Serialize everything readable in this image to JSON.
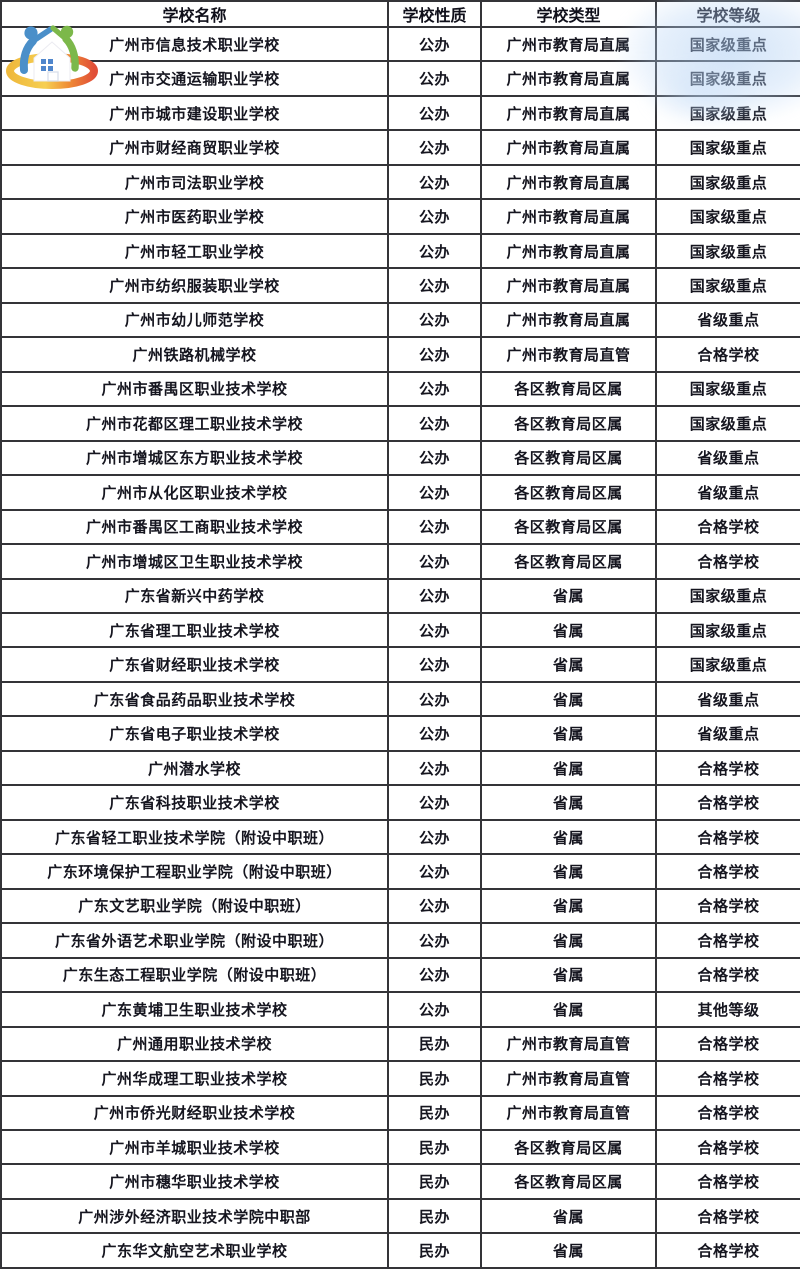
{
  "page": {
    "title": "广州中职学校一览表"
  },
  "colors": {
    "border": "#343438",
    "text": "#15151f",
    "background": "#ffffff",
    "watermark_blue": "#b7d4f5",
    "logo_blue": "#4a8fc9",
    "logo_green": "#7cb84a",
    "logo_ring_yellow": "#efb93c",
    "logo_ring_orange": "#ef8c35",
    "logo_ring_red": "#e14f38",
    "logo_window_blue": "#4f86cc"
  },
  "logo": {
    "icon": "family-house-swirl-logo"
  },
  "table": {
    "columns": [
      "学校名称",
      "学校性质",
      "学校类型",
      "学校等级"
    ],
    "rows": [
      {
        "name": "广州市信息技术职业学校",
        "nature": "公办",
        "type": "广州市教育局直属",
        "level": "国家级重点"
      },
      {
        "name": "广州市交通运输职业学校",
        "nature": "公办",
        "type": "广州市教育局直属",
        "level": "国家级重点"
      },
      {
        "name": "广州市城市建设职业学校",
        "nature": "公办",
        "type": "广州市教育局直属",
        "level": "国家级重点"
      },
      {
        "name": "广州市财经商贸职业学校",
        "nature": "公办",
        "type": "广州市教育局直属",
        "level": "国家级重点"
      },
      {
        "name": "广州市司法职业学校",
        "nature": "公办",
        "type": "广州市教育局直属",
        "level": "国家级重点"
      },
      {
        "name": "广州市医药职业学校",
        "nature": "公办",
        "type": "广州市教育局直属",
        "level": "国家级重点"
      },
      {
        "name": "广州市轻工职业学校",
        "nature": "公办",
        "type": "广州市教育局直属",
        "level": "国家级重点"
      },
      {
        "name": "广州市纺织服装职业学校",
        "nature": "公办",
        "type": "广州市教育局直属",
        "level": "国家级重点"
      },
      {
        "name": "广州市幼儿师范学校",
        "nature": "公办",
        "type": "广州市教育局直属",
        "level": "省级重点"
      },
      {
        "name": "广州铁路机械学校",
        "nature": "公办",
        "type": "广州市教育局直管",
        "level": "合格学校"
      },
      {
        "name": "广州市番禺区职业技术学校",
        "nature": "公办",
        "type": "各区教育局区属",
        "level": "国家级重点"
      },
      {
        "name": "广州市花都区理工职业技术学校",
        "nature": "公办",
        "type": "各区教育局区属",
        "level": "国家级重点"
      },
      {
        "name": "广州市增城区东方职业技术学校",
        "nature": "公办",
        "type": "各区教育局区属",
        "level": "省级重点"
      },
      {
        "name": "广州市从化区职业技术学校",
        "nature": "公办",
        "type": "各区教育局区属",
        "level": "省级重点"
      },
      {
        "name": "广州市番禺区工商职业技术学校",
        "nature": "公办",
        "type": "各区教育局区属",
        "level": "合格学校"
      },
      {
        "name": "广州市增城区卫生职业技术学校",
        "nature": "公办",
        "type": "各区教育局区属",
        "level": "合格学校"
      },
      {
        "name": "广东省新兴中药学校",
        "nature": "公办",
        "type": "省属",
        "level": "国家级重点"
      },
      {
        "name": "广东省理工职业技术学校",
        "nature": "公办",
        "type": "省属",
        "level": "国家级重点"
      },
      {
        "name": "广东省财经职业技术学校",
        "nature": "公办",
        "type": "省属",
        "level": "国家级重点"
      },
      {
        "name": "广东省食品药品职业技术学校",
        "nature": "公办",
        "type": "省属",
        "level": "省级重点"
      },
      {
        "name": "广东省电子职业技术学校",
        "nature": "公办",
        "type": "省属",
        "level": "省级重点"
      },
      {
        "name": "广州潜水学校",
        "nature": "公办",
        "type": "省属",
        "level": "合格学校"
      },
      {
        "name": "广东省科技职业技术学校",
        "nature": "公办",
        "type": "省属",
        "level": "合格学校"
      },
      {
        "name": "广东省轻工职业技术学院（附设中职班）",
        "nature": "公办",
        "type": "省属",
        "level": "合格学校"
      },
      {
        "name": "广东环境保护工程职业学院（附设中职班）",
        "nature": "公办",
        "type": "省属",
        "level": "合格学校"
      },
      {
        "name": "广东文艺职业学院（附设中职班）",
        "nature": "公办",
        "type": "省属",
        "level": "合格学校"
      },
      {
        "name": "广东省外语艺术职业学院（附设中职班）",
        "nature": "公办",
        "type": "省属",
        "level": "合格学校"
      },
      {
        "name": "广东生态工程职业学院（附设中职班）",
        "nature": "公办",
        "type": "省属",
        "level": "合格学校"
      },
      {
        "name": "广东黄埔卫生职业技术学校",
        "nature": "公办",
        "type": "省属",
        "level": "其他等级"
      },
      {
        "name": "广州通用职业技术学校",
        "nature": "民办",
        "type": "广州市教育局直管",
        "level": "合格学校"
      },
      {
        "name": "广州华成理工职业技术学校",
        "nature": "民办",
        "type": "广州市教育局直管",
        "level": "合格学校"
      },
      {
        "name": "广州市侨光财经职业技术学校",
        "nature": "民办",
        "type": "广州市教育局直管",
        "level": "合格学校"
      },
      {
        "name": "广州市羊城职业技术学校",
        "nature": "民办",
        "type": "各区教育局区属",
        "level": "合格学校"
      },
      {
        "name": "广州市穗华职业技术学校",
        "nature": "民办",
        "type": "各区教育局区属",
        "level": "合格学校"
      },
      {
        "name": "广州涉外经济职业技术学院中职部",
        "nature": "民办",
        "type": "省属",
        "level": "合格学校"
      },
      {
        "name": "广东华文航空艺术职业学校",
        "nature": "民办",
        "type": "省属",
        "level": "合格学校"
      }
    ]
  }
}
